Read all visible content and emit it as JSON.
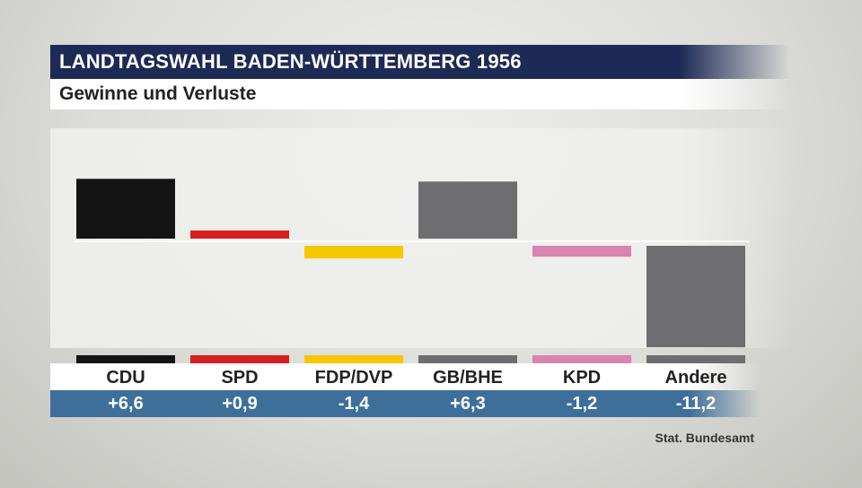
{
  "header": {
    "title": "LANDTAGSWAHL BADEN-WÜRTTEMBERG 1956",
    "subtitle": "Gewinne und Verluste"
  },
  "source": "Stat. Bundesamt",
  "chart_data": {
    "type": "bar",
    "title": "LANDTAGSWAHL BADEN-WÜRTTEMBERG 1956",
    "subtitle": "Gewinne und Verluste",
    "categories": [
      "CDU",
      "SPD",
      "FDP/DVP",
      "GB/BHE",
      "KPD",
      "Andere"
    ],
    "values": [
      6.6,
      0.9,
      -1.4,
      6.3,
      -1.2,
      -11.2
    ],
    "value_labels": [
      "+6,6",
      "+0,9",
      "-1,4",
      "+6,3",
      "-1,2",
      "-11,2"
    ],
    "colors": [
      "#141414",
      "#d71f1f",
      "#f5c800",
      "#6e6e70",
      "#d884b0",
      "#6e6e70"
    ],
    "xlabel": "",
    "ylabel": "",
    "ylim": [
      -11.2,
      6.6
    ],
    "grid": false,
    "legend": "none"
  }
}
